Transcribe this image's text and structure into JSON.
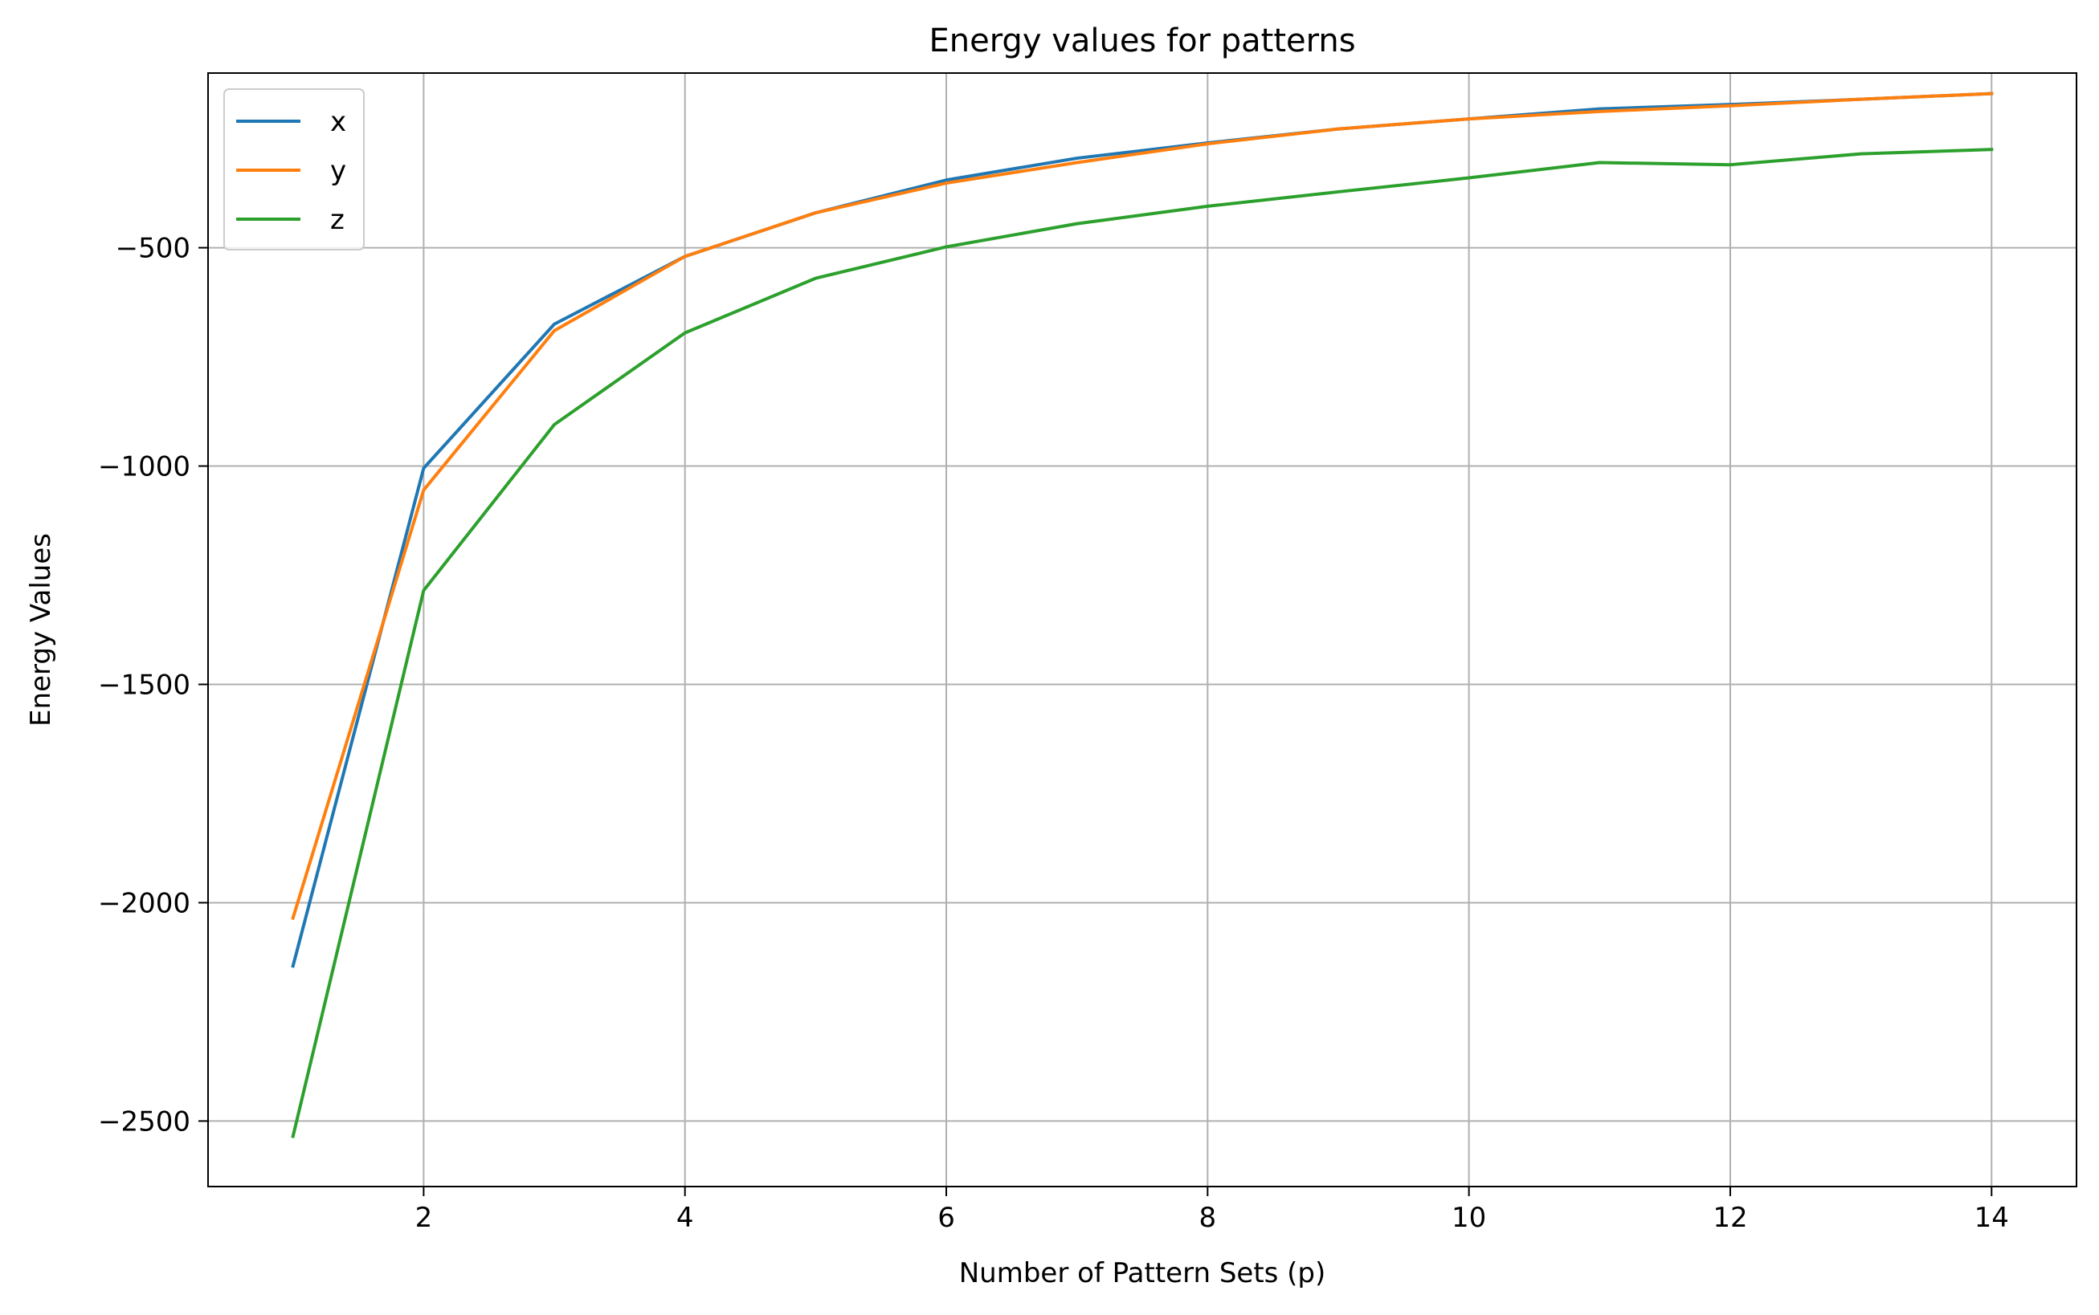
{
  "chart_data": {
    "type": "line",
    "title": "Energy values for patterns",
    "xlabel": "Number of Pattern Sets (p)",
    "ylabel": "Energy Values",
    "xlim": [
      0.35,
      14.65
    ],
    "ylim": [
      -2650,
      -100
    ],
    "xticks": [
      2,
      4,
      6,
      8,
      10,
      12,
      14
    ],
    "yticks": [
      -2500,
      -2000,
      -1500,
      -1000,
      -500
    ],
    "ytick_labels": [
      "−2500",
      "−2000",
      "−1500",
      "−1000",
      "−500"
    ],
    "grid": true,
    "legend_position": "top-left",
    "x": [
      1,
      2,
      3,
      4,
      5,
      6,
      7,
      8,
      9,
      10,
      11,
      12,
      13,
      14
    ],
    "series": [
      {
        "name": "x",
        "color": "#1f77b4",
        "values": [
          -2145,
          -1005,
          -675,
          -520,
          -420,
          -345,
          -295,
          -260,
          -228,
          -205,
          -182,
          -172,
          -160,
          -147
        ]
      },
      {
        "name": "y",
        "color": "#ff7f0e",
        "values": [
          -2035,
          -1055,
          -690,
          -520,
          -420,
          -352,
          -305,
          -262,
          -228,
          -205,
          -188,
          -175,
          -160,
          -147
        ]
      },
      {
        "name": "z",
        "color": "#2ca02c",
        "values": [
          -2535,
          -1285,
          -905,
          -695,
          -570,
          -498,
          -445,
          -405,
          -372,
          -340,
          -305,
          -310,
          -285,
          -275
        ]
      }
    ]
  }
}
